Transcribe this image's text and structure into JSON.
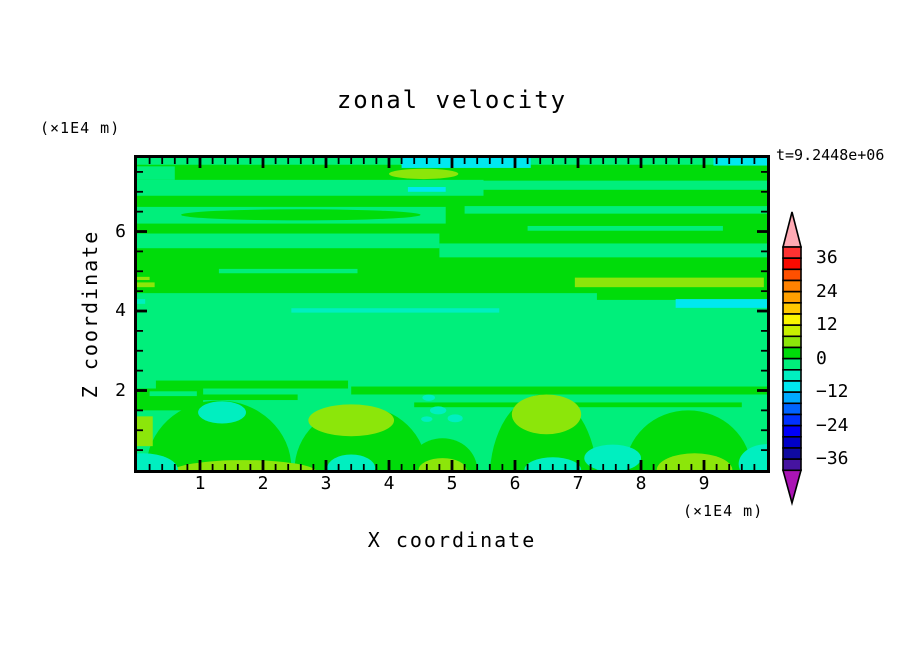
{
  "title": "zonal velocity",
  "time_label": "t=9.2448e+06",
  "axes": {
    "x_label": "X coordinate",
    "y_label": "Z coordinate",
    "x_units": "(×1E4 m)",
    "y_units": "(×1E4 m)"
  },
  "chart_data": {
    "type": "contour",
    "title": "zonal velocity",
    "xlabel": "X coordinate",
    "ylabel": "Z coordinate",
    "x_units": "(×1E4 m)",
    "y_units": "(×1E4 m)",
    "time": "t=9.2448e+06",
    "xlim": [
      0,
      10
    ],
    "zlim": [
      0,
      7.85
    ],
    "x_major_ticks": [
      1,
      2,
      3,
      4,
      5,
      6,
      7,
      8,
      9
    ],
    "x_minor_step": 0.2,
    "y_major_ticks": [
      2,
      4,
      6
    ],
    "y_minor_step": 0.5,
    "grid": false,
    "background_value": -2,
    "levels": [
      -40,
      -36,
      -32,
      -28,
      -24,
      -20,
      -16,
      -12,
      -8,
      -4,
      0,
      4,
      8,
      12,
      16,
      20,
      24,
      28,
      32,
      36,
      40
    ],
    "colors": [
      "#4614A0",
      "#0F0AA0",
      "#0000C8",
      "#0000FA",
      "#0032FF",
      "#0064FF",
      "#00AAFF",
      "#00E8F0",
      "#00EFC0",
      "#00EF7B",
      "#00DC0A",
      "#8CE60A",
      "#C8F000",
      "#FAF500",
      "#FFC800",
      "#FFA000",
      "#FF8200",
      "#FF5000",
      "#FA0A00",
      "#FF3232"
    ],
    "under_color": "#AA14B4",
    "over_color": "#FFAAB4",
    "colorbar_labels": [
      36,
      24,
      12,
      0,
      -12,
      -24,
      -36
    ],
    "regions": [
      [
        "rect",
        2,
        0,
        4.45,
        10,
        7.85
      ],
      [
        "rect",
        2,
        7.3,
        4.28,
        10,
        4.5
      ],
      [
        "rect",
        -2,
        0,
        7.68,
        10,
        7.85
      ],
      [
        "rect",
        -10,
        4.2,
        7.6,
        6.25,
        7.85
      ],
      [
        "rect",
        -10,
        9.15,
        7.66,
        10,
        7.85
      ],
      [
        "rect",
        -2,
        0,
        7.3,
        0.6,
        7.64
      ],
      [
        "ellipse",
        6,
        4.55,
        7.45,
        0.55,
        0.13
      ],
      [
        "rect",
        -2,
        0,
        6.9,
        5.5,
        7.3
      ],
      [
        "rect",
        -2,
        5.5,
        7.05,
        10,
        7.28
      ],
      [
        "rect",
        -10,
        4.3,
        7.0,
        4.9,
        7.12
      ],
      [
        "rect",
        -2,
        0,
        6.2,
        4.9,
        6.62
      ],
      [
        "ellipse",
        2,
        2.6,
        6.42,
        1.9,
        0.14
      ],
      [
        "rect",
        -2,
        5.2,
        6.45,
        10,
        6.64
      ],
      [
        "rect",
        -2,
        6.2,
        6.02,
        9.3,
        6.14
      ],
      [
        "rect",
        -2,
        0,
        5.58,
        4.8,
        5.95
      ],
      [
        "rect",
        -2,
        4.8,
        5.35,
        10,
        5.7
      ],
      [
        "rect",
        -2,
        1.3,
        4.95,
        3.5,
        5.06
      ],
      [
        "rect",
        6,
        6.95,
        4.6,
        9.95,
        4.84
      ],
      [
        "rect",
        6,
        0,
        4.6,
        0.28,
        4.72
      ],
      [
        "rect",
        6,
        0,
        4.78,
        0.2,
        4.86
      ],
      [
        "rect",
        -10,
        8.55,
        4.08,
        10,
        4.3
      ],
      [
        "rect",
        -6,
        2.45,
        3.96,
        5.75,
        4.07
      ],
      [
        "rect",
        -6,
        0,
        4.18,
        0.13,
        4.3
      ],
      [
        "rect",
        2,
        0.3,
        2.05,
        3.35,
        2.25
      ],
      [
        "rect",
        2,
        0.85,
        1.76,
        2.55,
        1.9
      ],
      [
        "rect",
        2,
        3.4,
        1.9,
        10,
        2.1
      ],
      [
        "rect",
        2,
        4.4,
        1.58,
        9.6,
        1.7
      ],
      [
        "rect",
        2,
        0,
        1.5,
        1.05,
        2.05
      ],
      [
        "rect",
        -2,
        0.2,
        1.86,
        0.95,
        1.98
      ],
      [
        "ellipse",
        2,
        1.3,
        0.05,
        1.15,
        1.7
      ],
      [
        "ellipse",
        2,
        3.55,
        0,
        1.05,
        1.6
      ],
      [
        "ellipse",
        2,
        6.45,
        -0.2,
        0.85,
        2.1
      ],
      [
        "ellipse",
        2,
        8.75,
        0,
        1.0,
        1.5
      ],
      [
        "ellipse",
        2,
        4.85,
        0,
        0.55,
        0.8
      ],
      [
        "ellipse",
        -6,
        1.35,
        1.45,
        0.38,
        0.28
      ],
      [
        "ellipse",
        6,
        3.4,
        1.25,
        0.68,
        0.4
      ],
      [
        "ellipse",
        6,
        6.5,
        1.4,
        0.55,
        0.5
      ],
      [
        "ellipse",
        6,
        1.7,
        -0.05,
        1.15,
        0.3
      ],
      [
        "ellipse",
        6,
        4.85,
        0,
        0.38,
        0.3
      ],
      [
        "ellipse",
        6,
        8.85,
        0,
        0.6,
        0.42
      ],
      [
        "rect",
        6,
        0,
        0.6,
        0.25,
        1.35
      ],
      [
        "ellipse",
        -6,
        0.1,
        0,
        0.55,
        0.42
      ],
      [
        "ellipse",
        -6,
        3.4,
        0.05,
        0.38,
        0.34
      ],
      [
        "ellipse",
        -6,
        6.6,
        0,
        0.45,
        0.32
      ],
      [
        "ellipse",
        -6,
        7.55,
        0.3,
        0.45,
        0.34
      ],
      [
        "ellipse",
        -6,
        10,
        0.15,
        0.45,
        0.5
      ],
      [
        "ellipse",
        -6,
        4.63,
        1.82,
        0.1,
        0.08
      ],
      [
        "ellipse",
        -6,
        4.78,
        1.5,
        0.13,
        0.1
      ],
      [
        "ellipse",
        -6,
        4.6,
        1.28,
        0.09,
        0.07
      ],
      [
        "ellipse",
        -6,
        5.05,
        1.3,
        0.12,
        0.1
      ]
    ]
  }
}
